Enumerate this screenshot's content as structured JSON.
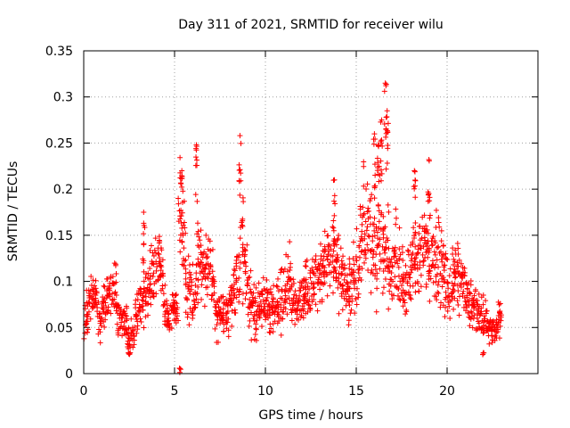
{
  "chart_data": {
    "type": "scatter",
    "title": "Day 311 of 2021, SRMTID for receiver wilu",
    "xlabel": "GPS time / hours",
    "ylabel": "SRMTID / TECUs",
    "xlim": [
      0,
      25
    ],
    "ylim": [
      0,
      0.35
    ],
    "grid": true,
    "marker": "+",
    "marker_color": "#ff0000",
    "grid_color": "#a0a0a0",
    "x_ticks": [
      {
        "value": 0,
        "label": "0"
      },
      {
        "value": 5,
        "label": "5"
      },
      {
        "value": 10,
        "label": "10"
      },
      {
        "value": 15,
        "label": "15"
      },
      {
        "value": 20,
        "label": "20"
      }
    ],
    "y_ticks": [
      {
        "value": 0,
        "label": "0"
      },
      {
        "value": 0.05,
        "label": "0.05"
      },
      {
        "value": 0.1,
        "label": "0.1"
      },
      {
        "value": 0.15,
        "label": "0.15"
      },
      {
        "value": 0.2,
        "label": "0.2"
      },
      {
        "value": 0.25,
        "label": "0.25"
      },
      {
        "value": 0.3,
        "label": "0.3"
      },
      {
        "value": 0.35,
        "label": "0.35"
      }
    ],
    "series": [
      {
        "name": "SRMTID",
        "x_range": [
          0,
          22.9
        ],
        "x": [
          0.0,
          0.2,
          0.4,
          0.6,
          0.8,
          1.0,
          1.2,
          1.4,
          1.6,
          1.8,
          2.0,
          2.2,
          2.4,
          2.6,
          2.8,
          3.0,
          3.2,
          3.4,
          3.6,
          3.8,
          4.0,
          4.2,
          4.4,
          4.6,
          4.8,
          5.0,
          5.2,
          5.4,
          5.6,
          5.8,
          6.0,
          6.2,
          6.4,
          6.6,
          6.8,
          7.0,
          7.2,
          7.4,
          7.6,
          7.8,
          8.0,
          8.2,
          8.4,
          8.6,
          8.8,
          9.0,
          9.2,
          9.4,
          9.6,
          9.8,
          10.0,
          10.2,
          10.4,
          10.6,
          10.8,
          11.0,
          11.2,
          11.4,
          11.6,
          11.8,
          12.0,
          12.2,
          12.4,
          12.6,
          12.8,
          13.0,
          13.2,
          13.4,
          13.6,
          13.8,
          14.0,
          14.2,
          14.4,
          14.6,
          14.8,
          15.0,
          15.2,
          15.4,
          15.6,
          15.8,
          16.0,
          16.2,
          16.4,
          16.6,
          16.8,
          17.0,
          17.2,
          17.4,
          17.6,
          17.8,
          18.0,
          18.2,
          18.4,
          18.6,
          18.8,
          19.0,
          19.2,
          19.4,
          19.6,
          19.8,
          20.0,
          20.2,
          20.4,
          20.6,
          20.8,
          21.0,
          21.2,
          21.4,
          21.6,
          21.8,
          22.0,
          22.2,
          22.4,
          22.6,
          22.8
        ],
        "y_center": [
          0.055,
          0.07,
          0.085,
          0.075,
          0.06,
          0.07,
          0.08,
          0.09,
          0.1,
          0.065,
          0.06,
          0.055,
          0.035,
          0.04,
          0.06,
          0.075,
          0.08,
          0.095,
          0.1,
          0.11,
          0.13,
          0.1,
          0.065,
          0.06,
          0.07,
          0.075,
          0.18,
          0.14,
          0.1,
          0.085,
          0.09,
          0.13,
          0.12,
          0.11,
          0.12,
          0.095,
          0.07,
          0.06,
          0.065,
          0.07,
          0.08,
          0.09,
          0.1,
          0.14,
          0.12,
          0.08,
          0.07,
          0.065,
          0.07,
          0.08,
          0.07,
          0.065,
          0.07,
          0.075,
          0.08,
          0.09,
          0.1,
          0.085,
          0.075,
          0.08,
          0.085,
          0.09,
          0.095,
          0.1,
          0.1,
          0.11,
          0.12,
          0.125,
          0.13,
          0.12,
          0.11,
          0.1,
          0.09,
          0.095,
          0.1,
          0.12,
          0.15,
          0.175,
          0.16,
          0.14,
          0.13,
          0.155,
          0.14,
          0.12,
          0.11,
          0.13,
          0.12,
          0.1,
          0.095,
          0.105,
          0.12,
          0.125,
          0.13,
          0.14,
          0.135,
          0.125,
          0.13,
          0.12,
          0.115,
          0.1,
          0.09,
          0.1,
          0.105,
          0.1,
          0.095,
          0.08,
          0.075,
          0.07,
          0.065,
          0.06,
          0.055,
          0.05,
          0.045,
          0.05,
          0.06
        ],
        "y_spread": [
          0.025,
          0.025,
          0.02,
          0.02,
          0.02,
          0.02,
          0.02,
          0.025,
          0.025,
          0.02,
          0.02,
          0.02,
          0.015,
          0.015,
          0.02,
          0.02,
          0.025,
          0.03,
          0.03,
          0.03,
          0.03,
          0.035,
          0.025,
          0.02,
          0.02,
          0.02,
          0.04,
          0.04,
          0.035,
          0.03,
          0.03,
          0.04,
          0.035,
          0.03,
          0.03,
          0.03,
          0.025,
          0.025,
          0.025,
          0.025,
          0.03,
          0.035,
          0.035,
          0.05,
          0.04,
          0.03,
          0.025,
          0.025,
          0.025,
          0.03,
          0.03,
          0.025,
          0.025,
          0.025,
          0.03,
          0.03,
          0.03,
          0.03,
          0.025,
          0.025,
          0.025,
          0.03,
          0.03,
          0.03,
          0.03,
          0.035,
          0.035,
          0.035,
          0.035,
          0.035,
          0.035,
          0.035,
          0.03,
          0.03,
          0.035,
          0.04,
          0.05,
          0.06,
          0.06,
          0.05,
          0.045,
          0.06,
          0.05,
          0.045,
          0.04,
          0.045,
          0.045,
          0.04,
          0.035,
          0.035,
          0.04,
          0.04,
          0.045,
          0.05,
          0.045,
          0.04,
          0.045,
          0.04,
          0.035,
          0.035,
          0.03,
          0.03,
          0.03,
          0.03,
          0.03,
          0.025,
          0.025,
          0.025,
          0.02,
          0.02,
          0.02,
          0.015,
          0.015,
          0.015,
          0.015
        ],
        "peaks": [
          {
            "x": 5.4,
            "y": 0.22
          },
          {
            "x": 6.2,
            "y": 0.248
          },
          {
            "x": 8.6,
            "y": 0.258
          },
          {
            "x": 16.0,
            "y": 0.26
          },
          {
            "x": 16.2,
            "y": 0.248
          },
          {
            "x": 16.4,
            "y": 0.275
          },
          {
            "x": 16.6,
            "y": 0.315
          },
          {
            "x": 16.7,
            "y": 0.285
          },
          {
            "x": 19.0,
            "y": 0.232
          },
          {
            "x": 18.2,
            "y": 0.22
          },
          {
            "x": 13.8,
            "y": 0.21
          },
          {
            "x": 3.3,
            "y": 0.175
          }
        ],
        "lows": [
          {
            "x": 5.3,
            "y": 0.0
          },
          {
            "x": 2.5,
            "y": 0.02
          },
          {
            "x": 22.0,
            "y": 0.02
          }
        ]
      }
    ]
  }
}
